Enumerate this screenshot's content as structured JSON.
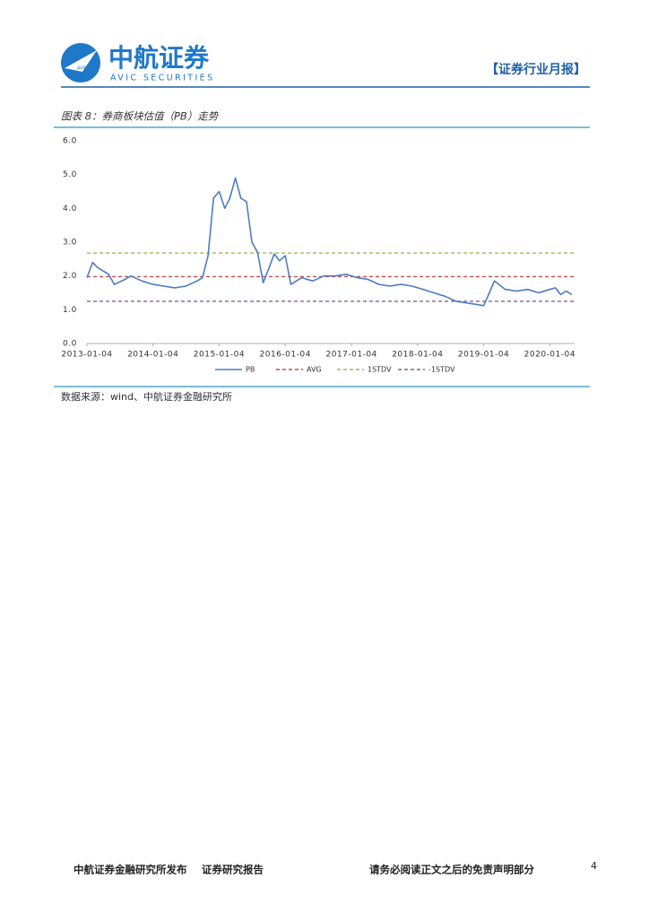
{
  "header": {
    "logo_badge": "AVIC",
    "logo_name": "中航证券",
    "logo_en": "AVIC SECURITIES",
    "report_type": "【证券行业月报】"
  },
  "figure": {
    "caption": "图表 8：券商板块估值（PB）走势",
    "source": "数据来源：wind、中航证券金融研究所"
  },
  "chart_data": {
    "type": "line",
    "x": [
      "2013-01-04",
      "2013-02-04",
      "2013-03-04",
      "2013-05-04",
      "2013-06-04",
      "2013-08-04",
      "2013-09-04",
      "2013-11-04",
      "2014-01-04",
      "2014-03-04",
      "2014-05-04",
      "2014-07-04",
      "2014-09-04",
      "2014-10-04",
      "2014-11-04",
      "2014-12-04",
      "2015-01-04",
      "2015-02-04",
      "2015-03-04",
      "2015-04-04",
      "2015-05-04",
      "2015-06-04",
      "2015-07-04",
      "2015-08-04",
      "2015-09-04",
      "2015-10-04",
      "2015-11-04",
      "2015-12-04",
      "2016-01-04",
      "2016-02-04",
      "2016-04-04",
      "2016-06-04",
      "2016-08-04",
      "2016-10-04",
      "2016-12-04",
      "2017-02-04",
      "2017-04-04",
      "2017-06-04",
      "2017-08-04",
      "2017-10-04",
      "2017-12-04",
      "2018-02-04",
      "2018-04-04",
      "2018-06-04",
      "2018-08-04",
      "2018-10-04",
      "2018-12-04",
      "2019-01-04",
      "2019-02-04",
      "2019-03-04",
      "2019-05-04",
      "2019-07-04",
      "2019-09-04",
      "2019-11-04",
      "2020-01-04",
      "2020-02-04",
      "2020-03-04",
      "2020-04-04",
      "2020-05-04"
    ],
    "series": [
      {
        "name": "PB",
        "color": "#4f7bbf",
        "values": [
          1.95,
          2.4,
          2.25,
          2.05,
          1.75,
          1.9,
          2.0,
          1.85,
          1.75,
          1.7,
          1.65,
          1.7,
          1.85,
          1.95,
          2.6,
          4.3,
          4.5,
          4.0,
          4.3,
          4.9,
          4.3,
          4.2,
          3.0,
          2.7,
          1.8,
          2.2,
          2.65,
          2.45,
          2.6,
          1.75,
          1.95,
          1.85,
          2.0,
          2.0,
          2.05,
          1.95,
          1.9,
          1.75,
          1.7,
          1.75,
          1.7,
          1.6,
          1.5,
          1.4,
          1.25,
          1.2,
          1.15,
          1.12,
          1.5,
          1.85,
          1.6,
          1.55,
          1.6,
          1.5,
          1.6,
          1.65,
          1.45,
          1.55,
          1.45
        ]
      }
    ],
    "reference_lines": [
      {
        "name": "AVG",
        "color": "#c0504d",
        "value": 1.98
      },
      {
        "name": "1STDV",
        "color": "#9bbb59",
        "value": 2.68
      },
      {
        "name": "-1STDV",
        "color": "#8064a2",
        "value": 1.25
      }
    ],
    "xlim": [
      "2013-01-04",
      "2020-05-20"
    ],
    "xticks": [
      "2013-01-04",
      "2014-01-04",
      "2015-01-04",
      "2016-01-04",
      "2017-01-04",
      "2018-01-04",
      "2019-01-04",
      "2020-01-04"
    ],
    "ylim": [
      0,
      6
    ],
    "yticks": [
      {
        "value": 0,
        "label": "0.0"
      },
      {
        "value": 1,
        "label": "1.0"
      },
      {
        "value": 2,
        "label": "2.0"
      },
      {
        "value": 3,
        "label": "3.0"
      },
      {
        "value": 4,
        "label": "4.0"
      },
      {
        "value": 5,
        "label": "5.0"
      },
      {
        "value": 6,
        "label": "6.0"
      }
    ],
    "grid": false,
    "legend": "bottom"
  },
  "footer": {
    "publisher": "中航证券金融研究所发布",
    "doc_type": "证券研究报告",
    "disclaimer": "请务必阅读正文之后的免责声明部分",
    "page": "4"
  }
}
